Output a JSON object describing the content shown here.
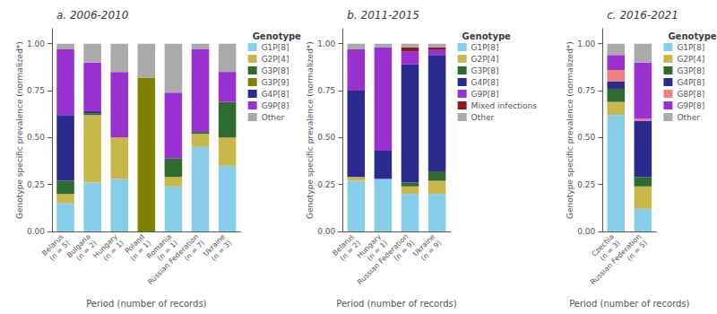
{
  "chart_data": [
    {
      "type": "bar",
      "title": "a. 2006-2010",
      "categories": [
        "Belarus\n(n = 5)",
        "Bulgaria\n(n = 2)",
        "Hungary\n(n = 1)",
        "Poland\n(n = 1)",
        "Romania\n(n = 1)",
        "Russian Federation\n(n = 7)",
        "Ukraine\n(n = 3)"
      ],
      "series": [
        {
          "name": "G1P[8]",
          "color": "#87CEEB",
          "values": [
            0.15,
            0.26,
            0.28,
            0.0,
            0.24,
            0.45,
            0.35
          ]
        },
        {
          "name": "G2P[4]",
          "color": "#C8B84A",
          "values": [
            0.05,
            0.36,
            0.22,
            0.0,
            0.05,
            0.07,
            0.15
          ]
        },
        {
          "name": "G3P[8]",
          "color": "#2E6B2E",
          "values": [
            0.07,
            0.01,
            0.0,
            0.0,
            0.1,
            0.01,
            0.19
          ]
        },
        {
          "name": "G3P[9]",
          "color": "#808000",
          "values": [
            0.0,
            0.0,
            0.0,
            0.82,
            0.0,
            0.0,
            0.0
          ]
        },
        {
          "name": "G4P[8]",
          "color": "#2B2B8F",
          "values": [
            0.35,
            0.01,
            0.0,
            0.0,
            0.0,
            0.0,
            0.0
          ]
        },
        {
          "name": "G9P[8]",
          "color": "#9B30D0",
          "values": [
            0.35,
            0.26,
            0.35,
            0.0,
            0.35,
            0.44,
            0.16
          ]
        },
        {
          "name": "Other",
          "color": "#AAAAAA",
          "values": [
            0.03,
            0.1,
            0.15,
            0.18,
            0.26,
            0.03,
            0.15
          ]
        }
      ],
      "xlabel": "Period (number of records)",
      "ylabel": "Genotype specific prevalence (normalized*)",
      "ylim": [
        0,
        1.08
      ],
      "yticks": [
        {
          "value": 0,
          "label": "0.00"
        },
        0.25,
        {
          "value": 0.5,
          "label": "0.50"
        },
        0.75,
        {
          "value": 1,
          "label": "1.00"
        }
      ],
      "stacked": true,
      "grid": false,
      "legend": "upper right",
      "legend_title": "Genotype"
    },
    {
      "type": "bar",
      "title": "b. 2011-2015",
      "categories": [
        "Belarus\n(n = 2)",
        "Hungary\n(n = 1)",
        "Russian Federation\n(n = 9)",
        "Ukraine\n(n = 9)"
      ],
      "series": [
        {
          "name": "G1P[8]",
          "color": "#87CEEB",
          "values": [
            0.27,
            0.28,
            0.2,
            0.2
          ]
        },
        {
          "name": "G2P[4]",
          "color": "#C8B84A",
          "values": [
            0.02,
            0.0,
            0.04,
            0.07
          ]
        },
        {
          "name": "G3P[8]",
          "color": "#2E6B2E",
          "values": [
            0.0,
            0.0,
            0.02,
            0.05
          ]
        },
        {
          "name": "G4P[8]",
          "color": "#2B2B8F",
          "values": [
            0.46,
            0.15,
            0.63,
            0.62
          ]
        },
        {
          "name": "G9P[8]",
          "color": "#9B30D0",
          "values": [
            0.22,
            0.55,
            0.07,
            0.03
          ]
        },
        {
          "name": "Mixed infections",
          "color": "#8B1A1A",
          "values": [
            0.0,
            0.0,
            0.02,
            0.01
          ]
        },
        {
          "name": "Other",
          "color": "#AAAAAA",
          "values": [
            0.03,
            0.02,
            0.02,
            0.02
          ]
        }
      ],
      "xlabel": "Period (number of records)",
      "ylabel": "Genotype specific prevalence (normalized*)",
      "ylim": [
        0,
        1.08
      ],
      "yticks": [
        {
          "value": 0,
          "label": "0.00"
        },
        0.25,
        {
          "value": 0.5,
          "label": "0.50"
        },
        0.75,
        {
          "value": 1,
          "label": "1.00"
        }
      ],
      "stacked": true,
      "grid": false,
      "legend": "upper right",
      "legend_title": "Genotype"
    },
    {
      "type": "bar",
      "title": "c. 2016-2021",
      "categories": [
        "Czechia\n(n = 3)",
        "Russian Federation\n(n = 5)"
      ],
      "series": [
        {
          "name": "G1P[8]",
          "color": "#87CEEB",
          "values": [
            0.62,
            0.12
          ]
        },
        {
          "name": "G2P[4]",
          "color": "#C8B84A",
          "values": [
            0.07,
            0.12
          ]
        },
        {
          "name": "G3P[8]",
          "color": "#2E6B2E",
          "values": [
            0.07,
            0.05
          ]
        },
        {
          "name": "G4P[8]",
          "color": "#2B2B8F",
          "values": [
            0.04,
            0.3
          ]
        },
        {
          "name": "G8P[8]",
          "color": "#F08080",
          "values": [
            0.06,
            0.01
          ]
        },
        {
          "name": "G9P[8]",
          "color": "#9B30D0",
          "values": [
            0.08,
            0.3
          ]
        },
        {
          "name": "Other",
          "color": "#AAAAAA",
          "values": [
            0.06,
            0.1
          ]
        }
      ],
      "xlabel": "Period (number of records)",
      "ylabel": "Genotype specific prevalence (normalized*)",
      "ylim": [
        0,
        1.08
      ],
      "yticks": [
        {
          "value": 0,
          "label": "0.00"
        },
        0.25,
        {
          "value": 0.5,
          "label": "0.50"
        },
        0.75,
        {
          "value": 1,
          "label": "1.00"
        }
      ],
      "stacked": true,
      "grid": false,
      "legend": "upper right",
      "legend_title": "Genotype"
    }
  ]
}
